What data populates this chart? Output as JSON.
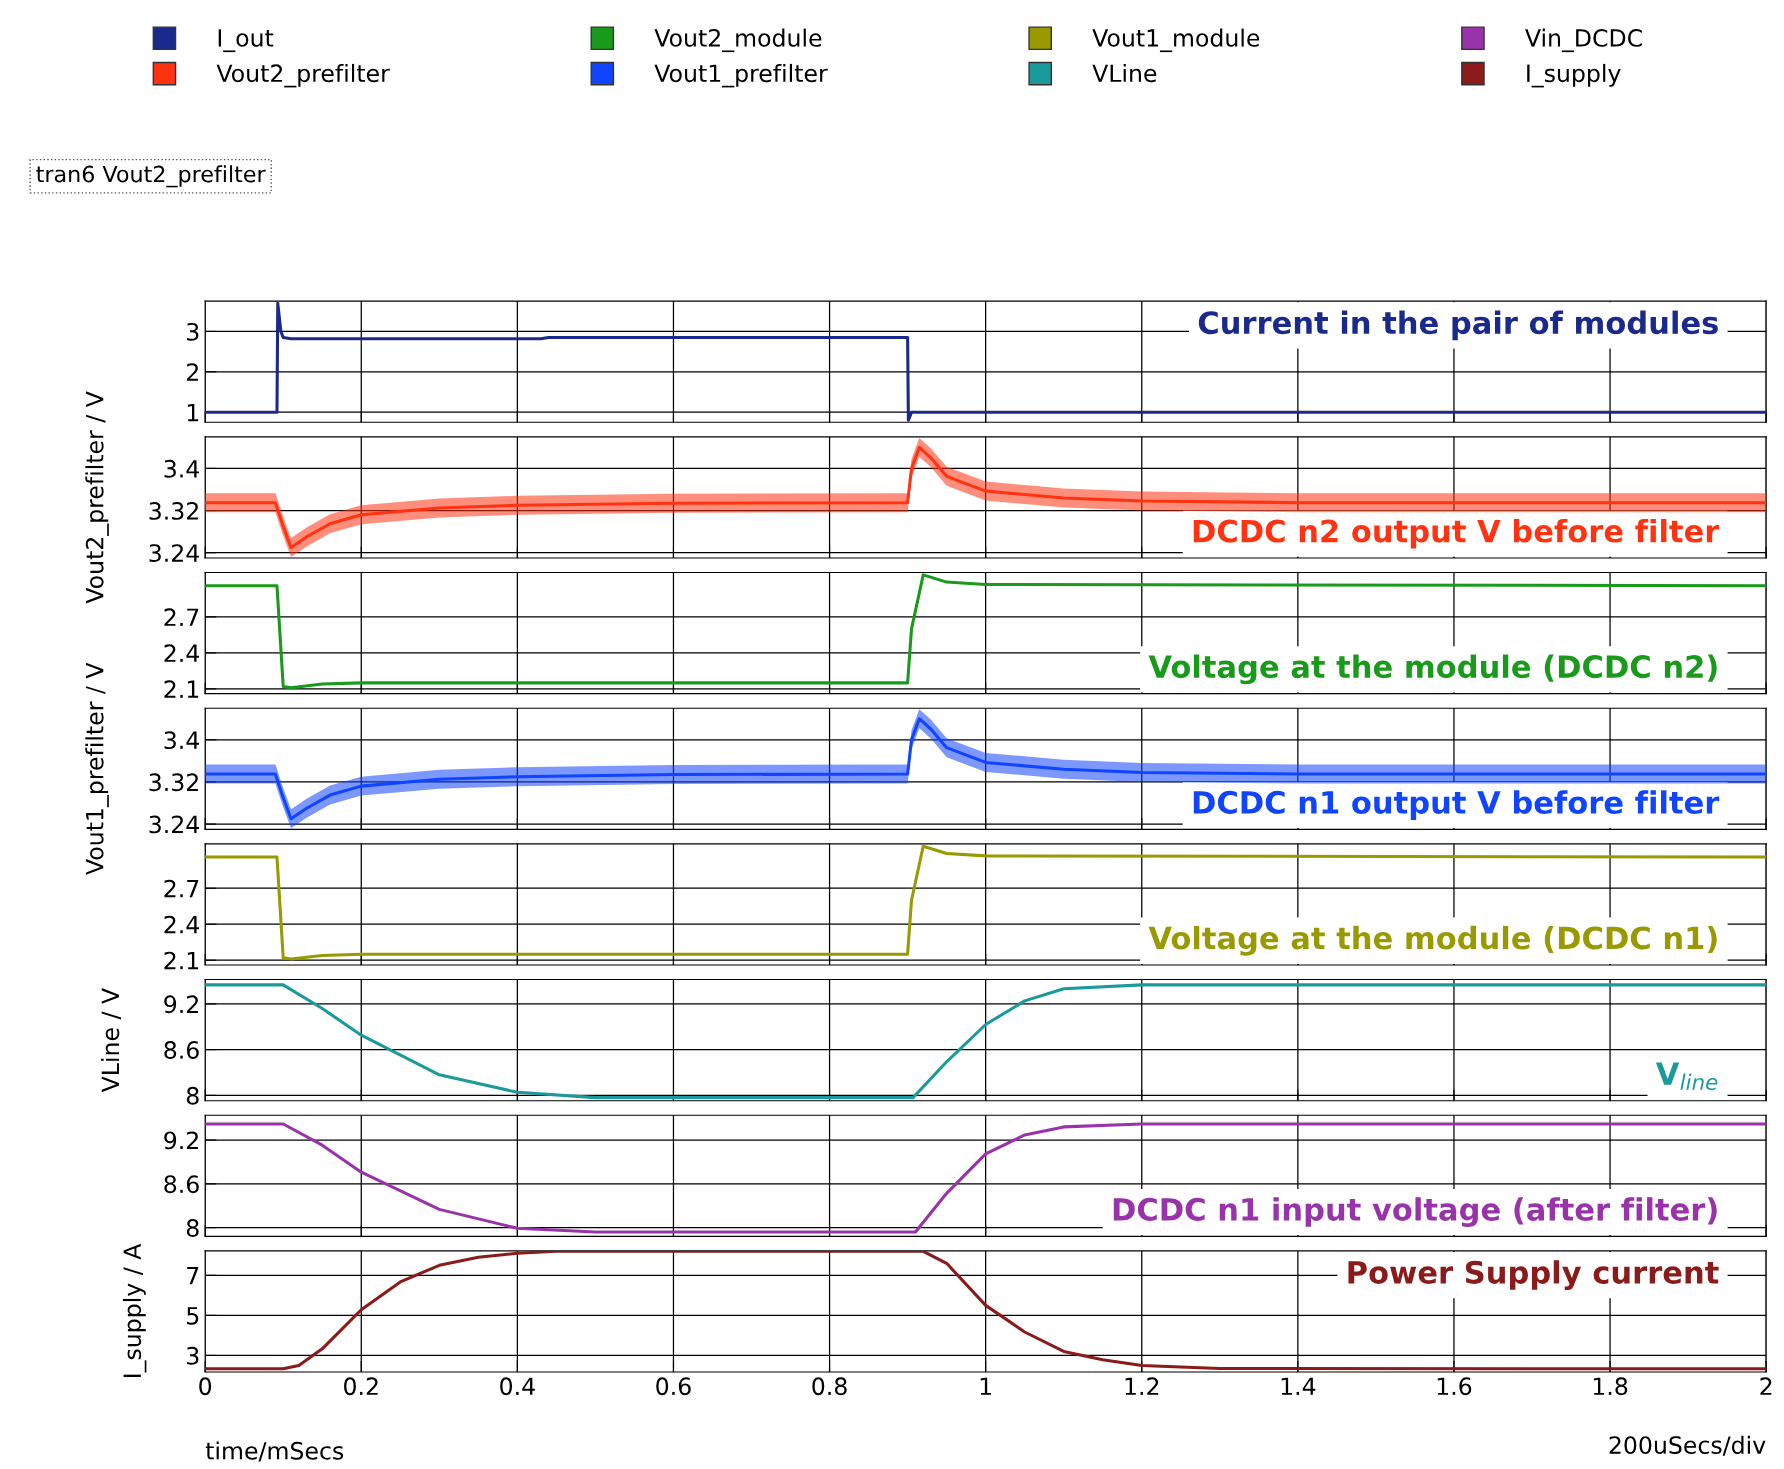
{
  "chart_data": [
    {
      "type": "line",
      "title": "Current in the pair of modules",
      "annotations": [
        "tran6 Vout2_prefilter"
      ],
      "legend": "top",
      "grid": true,
      "tick_labels": "y",
      "xlim": [
        0,
        2
      ],
      "ylim": [
        0.75,
        3.75
      ],
      "yticks": [
        1,
        2,
        3
      ],
      "series": [
        {
          "name": "I_out",
          "color": "#1a2a8c",
          "x": [
            0,
            0.092,
            0.093,
            0.097,
            0.1,
            0.11,
            0.43,
            0.44,
            0.9,
            0.901,
            0.905,
            2
          ],
          "values": [
            1,
            1,
            3.7,
            3.0,
            2.85,
            2.82,
            2.82,
            2.85,
            2.85,
            0.8,
            1.0,
            1.0
          ]
        }
      ]
    },
    {
      "type": "line",
      "title": "DCDC n2 output V before filter",
      "ylabel": "Vout2_prefilter / V",
      "legend": "top",
      "grid": true,
      "tick_labels": "y",
      "xlim": [
        0,
        2
      ],
      "ylim": [
        3.23,
        3.46
      ],
      "yticks": [
        3.24,
        3.32,
        3.4
      ],
      "series": [
        {
          "name": "Vout2_prefilter",
          "color": "#ff3311",
          "x": [
            0,
            0.09,
            0.1,
            0.11,
            0.13,
            0.16,
            0.2,
            0.3,
            0.4,
            0.6,
            0.9,
            0.905,
            0.915,
            0.93,
            0.95,
            1.0,
            1.1,
            1.2,
            1.4,
            2
          ],
          "values": [
            3.335,
            3.335,
            3.29,
            3.25,
            3.27,
            3.295,
            3.312,
            3.325,
            3.33,
            3.334,
            3.335,
            3.4,
            3.44,
            3.42,
            3.385,
            3.357,
            3.344,
            3.338,
            3.335,
            3.335
          ],
          "lower": [
            3.317,
            3.317,
            3.272,
            3.232,
            3.252,
            3.277,
            3.294,
            3.307,
            3.312,
            3.316,
            3.317,
            3.382,
            3.422,
            3.402,
            3.367,
            3.339,
            3.326,
            3.32,
            3.317,
            3.317
          ],
          "upper": [
            3.353,
            3.353,
            3.308,
            3.268,
            3.288,
            3.313,
            3.33,
            3.343,
            3.348,
            3.352,
            3.353,
            3.418,
            3.458,
            3.438,
            3.403,
            3.375,
            3.362,
            3.356,
            3.353,
            3.353
          ]
        }
      ]
    },
    {
      "type": "line",
      "title": "Voltage at the module (DCDC n2)",
      "legend": "top",
      "grid": true,
      "tick_labels": "y",
      "xlim": [
        0,
        2
      ],
      "ylim": [
        2.06,
        3.07
      ],
      "yticks": [
        2.1,
        2.4,
        2.7
      ],
      "series": [
        {
          "name": "Vout2_module",
          "color": "#1a9a1a",
          "x": [
            0,
            0.092,
            0.1,
            0.11,
            0.15,
            0.2,
            0.9,
            0.905,
            0.92,
            0.95,
            1.0,
            2
          ],
          "values": [
            2.96,
            2.96,
            2.12,
            2.11,
            2.14,
            2.15,
            2.15,
            2.6,
            3.05,
            2.99,
            2.97,
            2.96
          ]
        }
      ]
    },
    {
      "type": "line",
      "title": "DCDC n1 output V before filter",
      "ylabel": "Vout1_prefilter / V",
      "legend": "top",
      "grid": true,
      "tick_labels": "y",
      "xlim": [
        0,
        2
      ],
      "ylim": [
        3.23,
        3.46
      ],
      "yticks": [
        3.24,
        3.32,
        3.4
      ],
      "series": [
        {
          "name": "Vout1_prefilter",
          "color": "#1144ff",
          "x": [
            0,
            0.09,
            0.1,
            0.11,
            0.13,
            0.16,
            0.2,
            0.3,
            0.4,
            0.6,
            0.9,
            0.905,
            0.915,
            0.93,
            0.95,
            1.0,
            1.1,
            1.2,
            1.4,
            2
          ],
          "values": [
            3.335,
            3.335,
            3.29,
            3.25,
            3.27,
            3.295,
            3.312,
            3.325,
            3.33,
            3.334,
            3.335,
            3.4,
            3.44,
            3.42,
            3.385,
            3.357,
            3.344,
            3.338,
            3.335,
            3.335
          ],
          "lower": [
            3.317,
            3.317,
            3.272,
            3.232,
            3.252,
            3.277,
            3.294,
            3.307,
            3.312,
            3.316,
            3.317,
            3.382,
            3.422,
            3.402,
            3.367,
            3.339,
            3.326,
            3.32,
            3.317,
            3.317
          ],
          "upper": [
            3.353,
            3.353,
            3.308,
            3.268,
            3.288,
            3.313,
            3.33,
            3.343,
            3.348,
            3.352,
            3.353,
            3.418,
            3.458,
            3.438,
            3.403,
            3.375,
            3.362,
            3.356,
            3.353,
            3.353
          ]
        }
      ]
    },
    {
      "type": "line",
      "title": "Voltage at the module (DCDC n1)",
      "legend": "top",
      "grid": true,
      "tick_labels": "y",
      "xlim": [
        0,
        2
      ],
      "ylim": [
        2.06,
        3.07
      ],
      "yticks": [
        2.1,
        2.4,
        2.7
      ],
      "series": [
        {
          "name": "Vout1_module",
          "color": "#999900",
          "x": [
            0,
            0.092,
            0.1,
            0.11,
            0.15,
            0.2,
            0.9,
            0.905,
            0.92,
            0.95,
            1.0,
            2
          ],
          "values": [
            2.96,
            2.96,
            2.12,
            2.11,
            2.14,
            2.15,
            2.15,
            2.6,
            3.05,
            2.99,
            2.97,
            2.96
          ]
        }
      ]
    },
    {
      "type": "line",
      "title": "V$_{line}$",
      "ylabel": "VLine / V",
      "legend": "top",
      "grid": true,
      "tick_labels": "y",
      "xlim": [
        0,
        2
      ],
      "ylim": [
        7.93,
        9.52
      ],
      "yticks": [
        8,
        8.6,
        9.2
      ],
      "series": [
        {
          "name": "VLine",
          "color": "#1a9a9a",
          "x": [
            0,
            0.1,
            0.15,
            0.2,
            0.3,
            0.4,
            0.5,
            0.907,
            0.95,
            1.0,
            1.05,
            1.1,
            1.2,
            2
          ],
          "values": [
            9.45,
            9.45,
            9.14,
            8.79,
            8.27,
            8.04,
            7.97,
            7.97,
            8.44,
            8.93,
            9.24,
            9.4,
            9.45,
            9.45
          ]
        }
      ]
    },
    {
      "type": "line",
      "title": "DCDC n1 input voltage (after filter)",
      "legend": "top",
      "grid": true,
      "tick_labels": "y",
      "xlim": [
        0,
        2
      ],
      "ylim": [
        7.88,
        9.54
      ],
      "yticks": [
        8,
        8.6,
        9.2
      ],
      "series": [
        {
          "name": "Vin_DCDC",
          "color": "#9933aa",
          "x": [
            0,
            0.1,
            0.15,
            0.2,
            0.3,
            0.4,
            0.5,
            0.91,
            0.95,
            1.0,
            1.05,
            1.1,
            1.2,
            2
          ],
          "values": [
            9.42,
            9.42,
            9.13,
            8.76,
            8.25,
            7.99,
            7.94,
            7.94,
            8.47,
            9.01,
            9.27,
            9.38,
            9.42,
            9.42
          ]
        }
      ]
    },
    {
      "type": "line",
      "title": "Power Supply current",
      "ylabel": "I_supply / A",
      "xlabel": "time/mSecs",
      "annotations": [
        "200uSecs/div"
      ],
      "legend": "top",
      "grid": true,
      "xlim": [
        0,
        2
      ],
      "ylim": [
        2.17,
        8.22
      ],
      "yticks": [
        3,
        5,
        7
      ],
      "xticks": [
        0,
        0.2,
        0.4,
        0.6,
        0.8,
        1,
        1.2,
        1.4,
        1.6,
        1.8,
        2
      ],
      "series": [
        {
          "name": "I_supply",
          "color": "#8b1a1a",
          "x": [
            0,
            0.1,
            0.12,
            0.15,
            0.2,
            0.25,
            0.3,
            0.35,
            0.4,
            0.45,
            0.92,
            0.95,
            1.0,
            1.05,
            1.1,
            1.15,
            1.2,
            1.3,
            2
          ],
          "values": [
            2.33,
            2.33,
            2.5,
            3.33,
            5.28,
            6.67,
            7.5,
            7.9,
            8.1,
            8.2,
            8.2,
            7.6,
            5.5,
            4.17,
            3.2,
            2.78,
            2.5,
            2.35,
            2.33
          ]
        }
      ]
    }
  ]
}
